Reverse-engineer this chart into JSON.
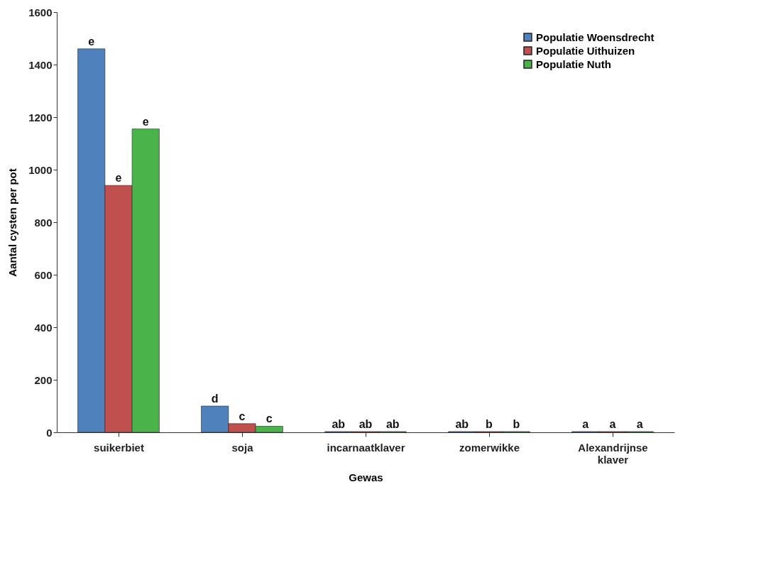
{
  "chart_data": {
    "type": "bar",
    "xlabel": "Gewas",
    "ylabel": "Aantal cysten per pot",
    "categories": [
      "suikerbiet",
      "soja",
      "incarnaatklaver",
      "zomerwikke",
      "Alexandrijnse klaver"
    ],
    "series": [
      {
        "name": "Populatie Woensdrecht",
        "color": "#4f81bd",
        "values": [
          1460,
          100,
          3,
          3,
          3
        ],
        "value_labels": [
          "e",
          "d",
          "ab",
          "ab",
          "a"
        ]
      },
      {
        "name": "Populatie Uithuizen",
        "color": "#c0504d",
        "values": [
          940,
          33,
          3,
          3,
          3
        ],
        "value_labels": [
          "e",
          "c",
          "ab",
          "b",
          "a"
        ]
      },
      {
        "name": "Populatie Nuth",
        "color": "#4ab44a",
        "values": [
          1155,
          23,
          3,
          3,
          3
        ],
        "value_labels": [
          "e",
          "c",
          "ab",
          "b",
          "a"
        ]
      }
    ],
    "ylim": [
      0,
      1600
    ],
    "yticks": [
      0,
      200,
      400,
      600,
      800,
      1000,
      1200,
      1400,
      1600
    ],
    "grid": false,
    "legend": "top right"
  }
}
